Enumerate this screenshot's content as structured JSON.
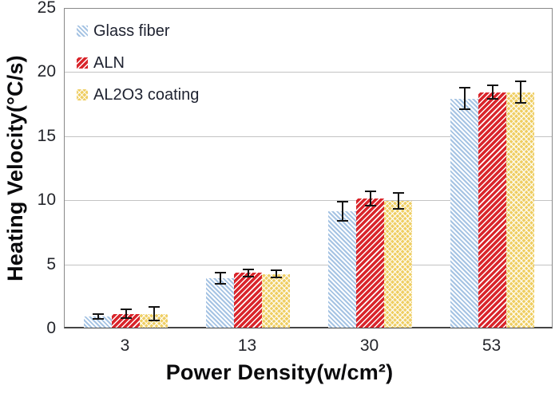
{
  "figure": {
    "background": "#ffffff"
  },
  "chart_data": {
    "type": "bar",
    "title": "",
    "xlabel": "Power Density(w/cm²)",
    "ylabel": "Heating Velocity(°C/s)",
    "categories": [
      "3",
      "13",
      "30",
      "53"
    ],
    "series": [
      {
        "name": "Glass fiber",
        "color": "#a5c3e3",
        "pattern": "diag-down",
        "values": [
          1.0,
          4.0,
          9.2,
          18.0
        ],
        "errors": [
          0.25,
          0.5,
          0.8,
          0.9
        ]
      },
      {
        "name": "ALN",
        "color": "#d9252b",
        "pattern": "diag-up",
        "values": [
          1.2,
          4.4,
          10.2,
          18.5
        ],
        "errors": [
          0.4,
          0.35,
          0.6,
          0.6
        ]
      },
      {
        "name": "AL2O3 coating",
        "color": "#efce62",
        "pattern": "cross",
        "values": [
          1.2,
          4.3,
          10.0,
          18.5
        ],
        "errors": [
          0.6,
          0.35,
          0.7,
          0.9
        ]
      }
    ],
    "ylim": [
      0,
      25
    ],
    "yticks": [
      0,
      5,
      10,
      15,
      20,
      25
    ],
    "grid": true,
    "legend_position": "top-left-inside",
    "error_bars": true,
    "colors": {
      "gridline": "#c3c3c3",
      "plot_border": "#898989",
      "axis_line": "#454545",
      "error_bar": "#141414",
      "tick_text": "#23252b",
      "title_text": "#0a0a0c"
    }
  }
}
